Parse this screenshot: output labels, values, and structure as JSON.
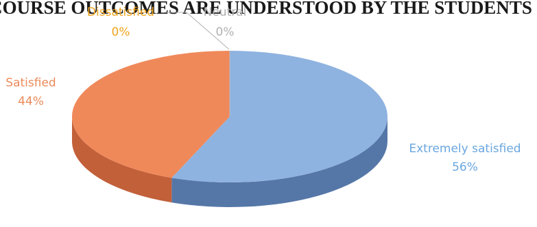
{
  "chart_data": {
    "type": "pie",
    "title": "COURSE OUTCOMES ARE UNDERSTOOD BY THE STUDENTS",
    "slices": [
      {
        "label": "Extremely satisfied",
        "value": 56,
        "percent_label": "56%",
        "color": "#8fb3e0",
        "side_color": "#5577a8"
      },
      {
        "label": "Satisfied",
        "value": 44,
        "percent_label": "44%",
        "color": "#f0895a",
        "side_color": "#c2603a"
      },
      {
        "label": "Dissatisfied",
        "value": 0,
        "percent_label": "0%",
        "color": "#f5b533",
        "side_color": "#c58a10"
      },
      {
        "label": "Neutral",
        "value": 0,
        "percent_label": "0%",
        "color": "#bcbcbc",
        "side_color": "#8f8f8f"
      }
    ],
    "label_colors": {
      "Extremely satisfied": "#6aa7e0",
      "Satisfied": "#ec8a5a",
      "Dissatisfied": "#f0a41c",
      "Neutral": "#b0b0b0"
    },
    "style": "3d"
  }
}
